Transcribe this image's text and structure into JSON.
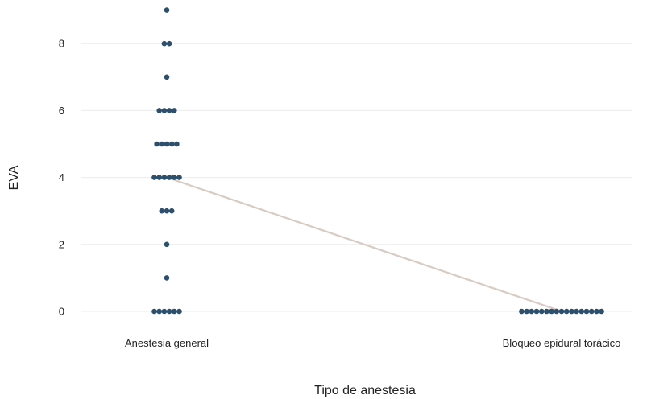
{
  "chart_data": {
    "type": "scatter",
    "title": "",
    "xlabel": "Tipo de anestesia",
    "ylabel": "EVA",
    "categories": [
      "Anestesia general",
      "Bloqueo epidural torácico"
    ],
    "ylim": [
      -0.6,
      9.2
    ],
    "yticks": [
      0,
      2,
      4,
      6,
      8
    ],
    "grid": true,
    "legend": "none",
    "points": [
      {
        "category": "Anestesia general",
        "values": [
          9,
          8,
          8,
          7,
          6,
          6,
          6,
          6,
          5,
          5,
          5,
          5,
          5,
          4,
          4,
          4,
          4,
          4,
          4,
          3,
          3,
          3,
          2,
          1,
          0,
          0,
          0,
          0,
          0,
          0
        ]
      },
      {
        "category": "Bloqueo epidural torácico",
        "values": [
          0,
          0,
          0,
          0,
          0,
          0,
          0,
          0,
          0,
          0,
          0,
          0,
          0,
          0,
          0,
          0,
          0
        ]
      }
    ],
    "median_line": {
      "values": [
        4,
        0
      ]
    },
    "colors": {
      "points": "#2d4f6e",
      "line": "#d8cbc4",
      "grid": "#ececec",
      "text": "#222222"
    }
  }
}
